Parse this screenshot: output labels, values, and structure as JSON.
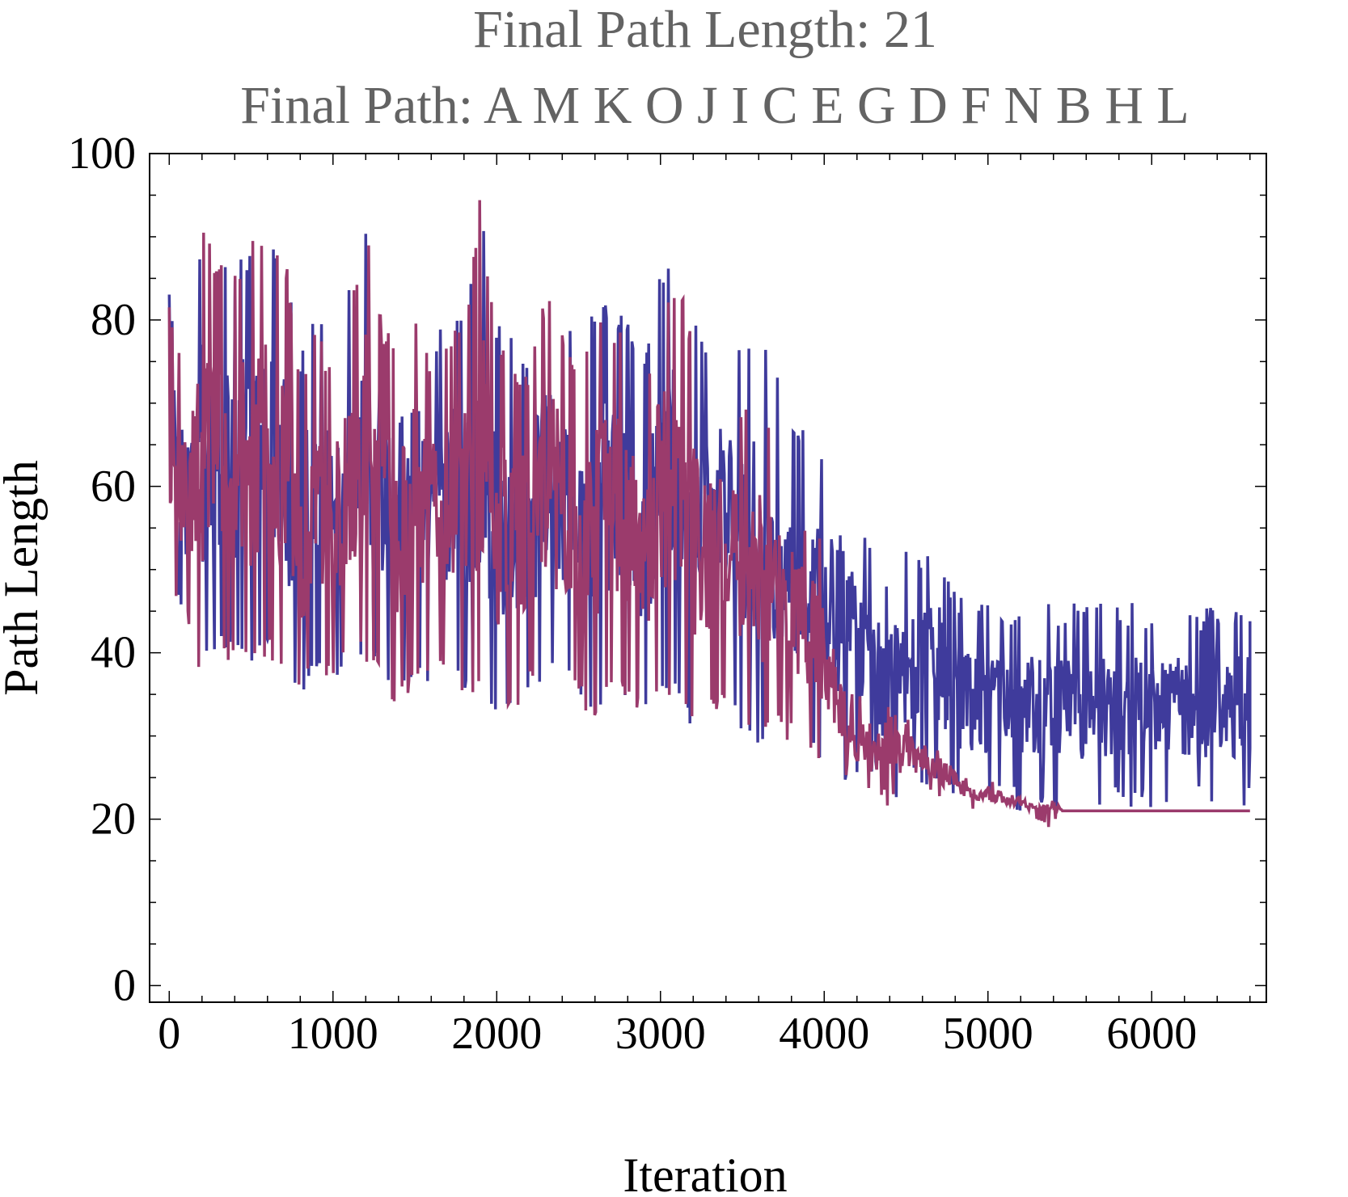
{
  "chart_data": {
    "type": "line",
    "title": "Final Path Length: 21",
    "subtitle": "Final Path: A M K O J I C E G D F N B H L",
    "xlabel": "Iteration",
    "ylabel": "Path Length",
    "xlim": [
      -120,
      6700
    ],
    "ylim": [
      -2,
      100
    ],
    "xticks": [
      0,
      1000,
      2000,
      3000,
      4000,
      5000,
      6000
    ],
    "yticks": [
      0,
      20,
      40,
      60,
      80,
      100
    ],
    "grid": false,
    "legend": "none",
    "series": [
      {
        "color": "#3f3b9c",
        "x": [
          0,
          100,
          200,
          300,
          400,
          500,
          600,
          700,
          800,
          900,
          1000,
          1100,
          1200,
          1300,
          1400,
          1500,
          1600,
          1700,
          1800,
          1900,
          2000,
          2100,
          2200,
          2300,
          2400,
          2500,
          2600,
          2700,
          2800,
          2900,
          3000,
          3100,
          3200,
          3300,
          3400,
          3500,
          3600,
          3700,
          3800,
          3900,
          4000,
          4100,
          4200,
          4300,
          4400,
          4500,
          4600,
          4700,
          4800,
          4900,
          5000,
          5100,
          5200,
          5300,
          5400,
          5500,
          5600,
          5700,
          5800,
          5900,
          6000,
          6100,
          6200,
          6300,
          6400,
          6500,
          6600
        ],
        "high": [
          84,
          73,
          92,
          87,
          86,
          90,
          90,
          90,
          76,
          82,
          76,
          84,
          92,
          82,
          80,
          84,
          78,
          80,
          82,
          94,
          80,
          78,
          76,
          86,
          82,
          76,
          82,
          83,
          80,
          75,
          86,
          88,
          82,
          76,
          81,
          78,
          78,
          75,
          69,
          66,
          64,
          65,
          58,
          52,
          50,
          54,
          53,
          53,
          47,
          47,
          47,
          46,
          46,
          46,
          46,
          46,
          46,
          46,
          46,
          46,
          45,
          45,
          46,
          45,
          46,
          46,
          46
        ],
        "low": [
          48,
          44,
          37,
          40,
          38,
          38,
          40,
          36,
          33,
          38,
          36,
          40,
          38,
          38,
          32,
          38,
          36,
          38,
          34,
          36,
          30,
          32,
          35,
          36,
          36,
          34,
          31,
          36,
          34,
          32,
          36,
          34,
          30,
          33,
          32,
          30,
          28,
          30,
          30,
          28,
          26,
          25,
          24,
          25,
          21,
          24,
          24,
          24,
          22,
          22,
          21,
          21,
          21,
          21,
          21,
          21,
          21,
          21,
          21,
          21,
          21,
          21,
          21,
          21,
          21,
          21,
          21
        ]
      },
      {
        "color": "#9b3b6c",
        "x": [
          0,
          100,
          200,
          300,
          400,
          500,
          600,
          700,
          800,
          900,
          1000,
          1100,
          1200,
          1300,
          1400,
          1500,
          1600,
          1700,
          1800,
          1900,
          2000,
          2100,
          2200,
          2300,
          2400,
          2500,
          2600,
          2700,
          2800,
          2900,
          3000,
          3100,
          3200,
          3300,
          3400,
          3500,
          3600,
          3700,
          3800,
          3900,
          4000,
          4100,
          4200,
          4300,
          4400,
          4500,
          4600,
          4700,
          4800,
          4900,
          5000,
          5100,
          5200,
          5300,
          5400,
          5500,
          5600,
          5700,
          5800,
          5900,
          6000,
          6100,
          6200,
          6300,
          6400,
          6500,
          6600
        ],
        "high": [
          84,
          73,
          92,
          87,
          86,
          90,
          90,
          90,
          74,
          80,
          74,
          82,
          92,
          80,
          78,
          82,
          76,
          78,
          80,
          96,
          78,
          76,
          74,
          84,
          80,
          74,
          80,
          80,
          78,
          72,
          83,
          86,
          78,
          70,
          72,
          70,
          70,
          68,
          60,
          57,
          54,
          40,
          36,
          32,
          34,
          33,
          31,
          30,
          27,
          24,
          25,
          24,
          23,
          22,
          22,
          21,
          21,
          21,
          21,
          21,
          21,
          21,
          21,
          21,
          21,
          21,
          21
        ],
        "low": [
          48,
          44,
          35,
          40,
          38,
          37,
          40,
          36,
          33,
          38,
          36,
          40,
          38,
          38,
          32,
          37,
          36,
          37,
          34,
          36,
          29,
          32,
          35,
          36,
          36,
          34,
          31,
          36,
          34,
          32,
          36,
          34,
          30,
          32,
          32,
          30,
          28,
          30,
          29,
          27,
          26,
          25,
          24,
          23,
          21,
          24,
          23,
          22,
          22,
          22,
          21,
          21,
          21,
          21,
          21,
          21,
          21,
          21,
          21,
          21,
          21,
          21,
          21,
          21,
          21,
          21,
          21
        ]
      }
    ]
  }
}
